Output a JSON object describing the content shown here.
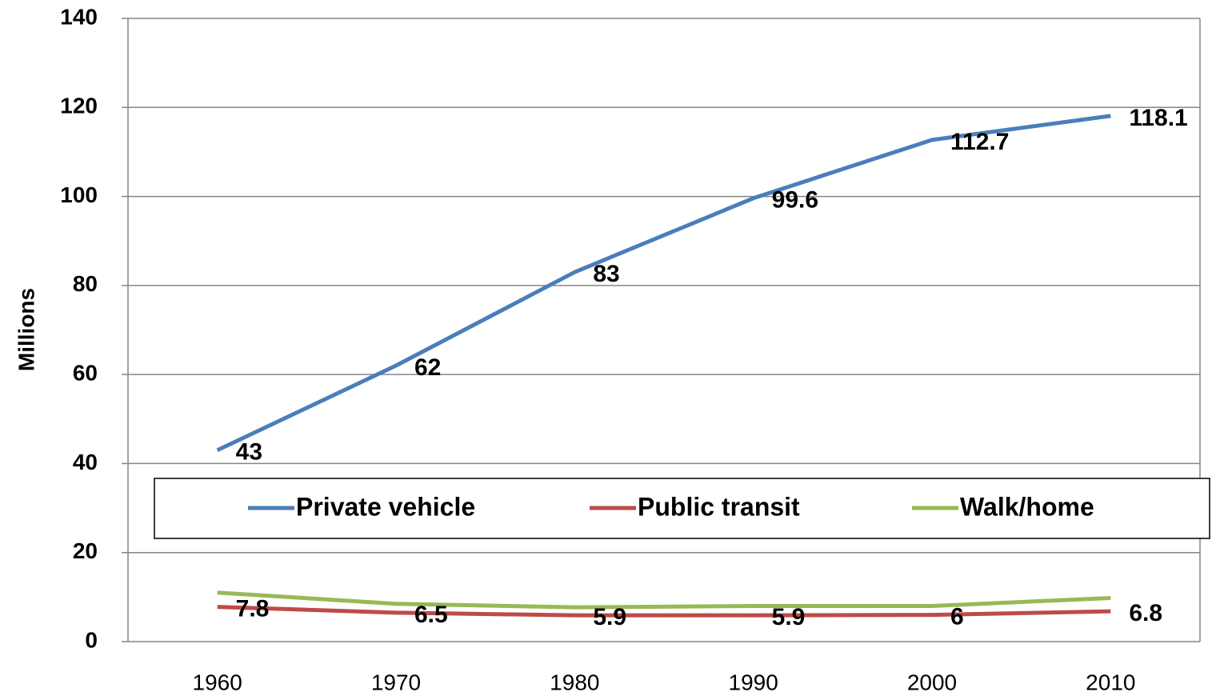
{
  "chart_data": {
    "type": "line",
    "y_label": "Millions",
    "categories": [
      "1960",
      "1970",
      "1980",
      "1990",
      "2000",
      "2010"
    ],
    "series": [
      {
        "name": "Private vehicle",
        "color": "#4a7ebb",
        "values": [
          43,
          62,
          83,
          99.6,
          112.7,
          118.1
        ],
        "data_labels": true
      },
      {
        "name": "Public transit",
        "color": "#be4b48",
        "values": [
          7.8,
          6.5,
          5.9,
          5.9,
          6,
          6.8
        ],
        "data_labels": true
      },
      {
        "name": "Walk/home",
        "color": "#98b954",
        "values": [
          11,
          8.5,
          7.7,
          8,
          8,
          9.8
        ],
        "data_labels": false
      }
    ],
    "ylim": [
      0,
      140
    ],
    "yticks": [
      0,
      20,
      40,
      60,
      80,
      100,
      120,
      140
    ],
    "grid": true,
    "legend": "inside"
  }
}
